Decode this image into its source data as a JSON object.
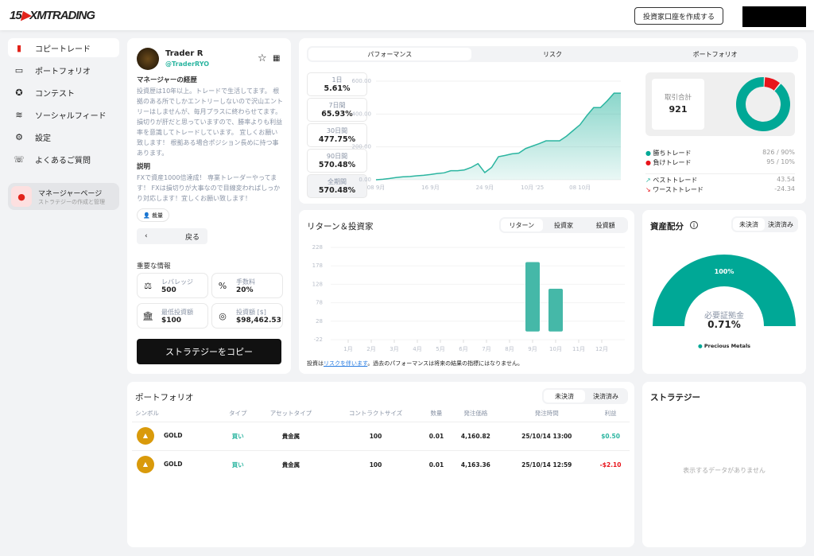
{
  "header": {
    "logo_years": "15",
    "logo_text": "XMTRADING",
    "create_account": "投資家口座を作成する"
  },
  "sidebar": {
    "items": [
      {
        "label": "コピートレード",
        "icon": "bar-chart-icon",
        "active": true
      },
      {
        "label": "ポートフォリオ",
        "icon": "briefcase-icon"
      },
      {
        "label": "コンテスト",
        "icon": "award-icon"
      },
      {
        "label": "ソーシャルフィード",
        "icon": "rss-icon"
      },
      {
        "label": "設定",
        "icon": "gear-icon"
      },
      {
        "label": "よくあるご質問",
        "icon": "chat-question-icon"
      }
    ],
    "manager": {
      "title": "マネージャーページ",
      "subtitle": "ストラテジーの作成と管理"
    }
  },
  "profile": {
    "name": "Trader R",
    "handle": "@TraderRYO",
    "history_title": "マネージャーの経歴",
    "history": "投資歴は10年以上。トレードで生活してます。 根拠のある所でしかエントリーしないので沢山エントリーはしませんが、毎月プラスに終わらせてます。 損切りが肝だと思っていますので、勝率よりも利益率を意識してトレードしています。 宜しくお願い致します！ 根拠ある場合ポジション長めに持つ事あります。",
    "desc_title": "説明",
    "desc": "FXで資産1000倍達成！ 専業トレーダーやってます！ FXは損切りが大事なので目線変わればしっかり対応します！宜しくお願い致します！",
    "tag": "裁量",
    "back": "戻る",
    "info_title": "重要な情報",
    "info": [
      {
        "label": "レバレッジ",
        "value": "500",
        "icon": "scale-icon"
      },
      {
        "label": "手数料",
        "value": "20%",
        "icon": "percent-icon"
      },
      {
        "label": "最低投資額",
        "value": "$100",
        "icon": "bank-icon"
      },
      {
        "label": "投資額 [$]",
        "value": "$98,462.53",
        "icon": "target-icon"
      }
    ],
    "copy": "ストラテジーをコピー"
  },
  "performance": {
    "tabs": [
      "パフォーマンス",
      "リスク",
      "ポートフォリオ"
    ],
    "active_tab": 0,
    "periods": [
      {
        "label": "1日",
        "value": "5.61%"
      },
      {
        "label": "7日間",
        "value": "65.93%"
      },
      {
        "label": "30日間",
        "value": "477.75%"
      },
      {
        "label": "90日間",
        "value": "570.48%"
      },
      {
        "label": "全期間",
        "value": "570.48%"
      }
    ],
    "total_label": "取引合計",
    "total": "921",
    "stats": [
      {
        "label": "勝ちトレード",
        "value": "826 / 90%",
        "color": "#00a896"
      },
      {
        "label": "負けトレード",
        "value": "95 / 10%",
        "color": "#e8141b"
      }
    ],
    "best_label": "ベストトレード",
    "best": "43.54",
    "worst_label": "ワーストトレード",
    "worst": "-24.34"
  },
  "returns": {
    "title": "リターン＆投資家",
    "tabs": [
      "リターン",
      "投資家",
      "投資額"
    ],
    "disclaimer_pre": "投資は",
    "disclaimer_link": "リスクを伴います",
    "disclaimer_post": "。過去のパフォーマンスは将来の結果の指標にはなりません。"
  },
  "allocation": {
    "title": "資産配分",
    "tabs": [
      "未決済",
      "決済済み"
    ],
    "pct": "100%",
    "margin_label": "必要証拠金",
    "margin": "0.71%",
    "legend": "Precious Metals",
    "color": "#00a896"
  },
  "portfolio": {
    "title": "ポートフォリオ",
    "tabs": [
      "未決済",
      "決済済み"
    ],
    "columns": [
      "シンボル",
      "タイプ",
      "アセットタイプ",
      "コントラクトサイズ",
      "数量",
      "発注価格",
      "発注時間",
      "利益"
    ],
    "rows": [
      [
        "GOLD",
        "買い",
        "貴金属",
        "100",
        "0.01",
        "4,160.82",
        "25/10/14 13:00",
        "$0.50"
      ],
      [
        "GOLD",
        "買い",
        "貴金属",
        "100",
        "0.01",
        "4,163.36",
        "25/10/14 12:59",
        "-$2.10"
      ]
    ]
  },
  "strategy": {
    "title": "ストラテジー",
    "empty": "表示するデータがありません"
  },
  "chart_data": [
    {
      "type": "area",
      "yticks": [
        "600.00",
        "400.00",
        "200.00",
        "0.00"
      ],
      "ylim": [
        0,
        600
      ],
      "xticks": [
        "08 9月",
        "16 9月",
        "24 9月",
        "10月 '25",
        "08 10月"
      ],
      "x": [
        "2025-09-08",
        "2025-09-09",
        "2025-09-10",
        "2025-09-11",
        "2025-09-12",
        "2025-09-13",
        "2025-09-14",
        "2025-09-15",
        "2025-09-16",
        "2025-09-17",
        "2025-09-18",
        "2025-09-19",
        "2025-09-20",
        "2025-09-21",
        "2025-09-22",
        "2025-09-23",
        "2025-09-24",
        "2025-09-25",
        "2025-09-26",
        "2025-09-27",
        "2025-09-28",
        "2025-09-29",
        "2025-09-30",
        "2025-10-01",
        "2025-10-02",
        "2025-10-03",
        "2025-10-04",
        "2025-10-05",
        "2025-10-06",
        "2025-10-07",
        "2025-10-08",
        "2025-10-09",
        "2025-10-10",
        "2025-10-11",
        "2025-10-12",
        "2025-10-13",
        "2025-10-14"
      ],
      "values": [
        0,
        3,
        8,
        14,
        18,
        20,
        24,
        27,
        32,
        38,
        42,
        55,
        55,
        60,
        75,
        98,
        44,
        75,
        140,
        148,
        158,
        162,
        190,
        205,
        220,
        237,
        237,
        237,
        265,
        300,
        335,
        390,
        439,
        439,
        480,
        527,
        527
      ],
      "color": "#2bb5a0"
    },
    {
      "type": "bar",
      "categories": [
        "1月",
        "2月",
        "3月",
        "4月",
        "5月",
        "6月",
        "7月",
        "8月",
        "9月",
        "10月",
        "11月",
        "12月"
      ],
      "values": [
        null,
        null,
        null,
        null,
        null,
        null,
        null,
        null,
        188,
        116,
        null,
        null
      ],
      "yticks": [
        "228",
        "178",
        "128",
        "78",
        "28",
        "-22"
      ],
      "ylim": [
        -22,
        228
      ],
      "color": "#45b8a8"
    },
    {
      "type": "pie",
      "categories": [
        "勝ちトレード",
        "負けトレード"
      ],
      "values": [
        826,
        95
      ],
      "colors": [
        "#00a896",
        "#e8141b"
      ]
    }
  ]
}
